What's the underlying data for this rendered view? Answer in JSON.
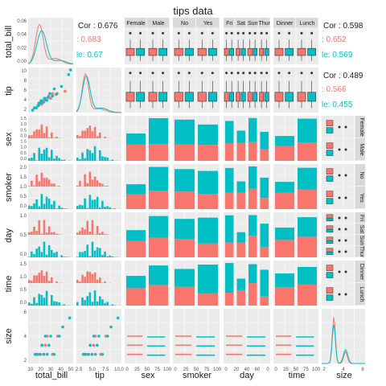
{
  "figure": {
    "title": "tips data",
    "variables": [
      "total_bill",
      "tip",
      "sex",
      "smoker",
      "day",
      "time",
      "size"
    ],
    "colors": {
      "female": "#F8766D",
      "male": "#00BFC4",
      "panel_bg": "#EBEBEB",
      "grid": "#FFFFFF",
      "strip_bg": "#D9D9D9",
      "text": "#1A1A1A"
    }
  },
  "chart_data": {
    "type": "scatter",
    "title": "tips data",
    "series": [
      {
        "name": "Female",
        "color": "#F8766D"
      },
      {
        "name": "Male",
        "color": "#00BFC4"
      }
    ],
    "correlations": [
      {
        "pair": "total_bill-tip",
        "overall_label": "Cor : 0.676",
        "group_labels": [
          ": 0.683",
          "le: 0.67"
        ]
      },
      {
        "pair": "total_bill-size",
        "overall_label": "Cor : 0.598",
        "group_labels": [
          ": 0.652",
          "le: 0.569"
        ]
      },
      {
        "pair": "tip-size",
        "overall_label": "Cor : 0.489",
        "group_labels": [
          ": 0.566",
          "le: 0.455"
        ]
      }
    ],
    "strip_labels": {
      "sex": [
        "Female",
        "Male"
      ],
      "smoker": [
        "No",
        "Yes"
      ],
      "day": [
        "Fri",
        "Sat",
        "Sun",
        "Thur"
      ],
      "time": [
        "Dinner",
        "Lunch"
      ]
    },
    "axis_tick_labels": {
      "total_bill_y": [
        "0.06",
        "0.04",
        "0.02",
        "0.00"
      ],
      "tip_y": [
        "10",
        "8",
        "6",
        "4",
        "2"
      ],
      "sex_y": [
        "1.5",
        "1.0",
        "0.5",
        "0.0",
        "1.5",
        "1.0",
        "0.5",
        "0.0"
      ],
      "smoker_y": [
        "2.0",
        "1.5",
        "1.0",
        "0.5",
        "0.0"
      ],
      "day_y": [
        "1.0",
        "0.5",
        "0.0"
      ],
      "time_y": [
        "1.5",
        "1.0",
        "0.5",
        "0.0"
      ],
      "size_y": [
        "6",
        "4",
        "2"
      ],
      "total_bill_x": [
        "10",
        "20",
        "30",
        "40",
        "50"
      ],
      "tip_x": [
        "2.5",
        "5.0",
        "7.5",
        "10.0"
      ],
      "sex_x": [
        "0",
        "25",
        "50",
        "75",
        "100"
      ],
      "smoker_x": [
        "0",
        "25",
        "50",
        "75",
        "100"
      ],
      "day_x": [
        "0",
        "20",
        "40",
        "60",
        "0"
      ],
      "time_x": [
        "0",
        "25",
        "50",
        "75",
        "100"
      ],
      "size_x": [
        "2",
        "4",
        "6"
      ]
    },
    "scatter_total_bill_tip": {
      "female_x": [
        12,
        15,
        16,
        17,
        18,
        19,
        20,
        22,
        24,
        26,
        28,
        30,
        34,
        44
      ],
      "female_y": [
        2.0,
        2.5,
        3.0,
        3.5,
        2.8,
        3.1,
        3.5,
        4.0,
        3.6,
        4.5,
        4.0,
        5.0,
        4.8,
        5.5
      ],
      "male_x": [
        8,
        10,
        12,
        14,
        15,
        17,
        18,
        20,
        21,
        23,
        25,
        27,
        30,
        32,
        35,
        40,
        48,
        50
      ],
      "male_y": [
        1.5,
        2.0,
        2.0,
        2.5,
        3.0,
        3.0,
        3.5,
        3.2,
        4.0,
        3.6,
        4.2,
        5.0,
        4.5,
        6.0,
        5.0,
        6.5,
        9.0,
        10.0
      ]
    },
    "size_scatter": {
      "female_x": [
        10,
        12,
        14,
        16,
        18,
        20,
        22,
        28,
        34
      ],
      "female_y": [
        2,
        2,
        2,
        3,
        2,
        3,
        4,
        2,
        4
      ],
      "male_x": [
        8,
        10,
        14,
        16,
        18,
        20,
        22,
        24,
        26,
        30,
        36,
        40,
        48
      ],
      "male_y": [
        2,
        2,
        2,
        3,
        2,
        4,
        2,
        3,
        4,
        2,
        4,
        5,
        6
      ]
    },
    "xlabel_note": "diagonal: density / bar panels per variable"
  }
}
